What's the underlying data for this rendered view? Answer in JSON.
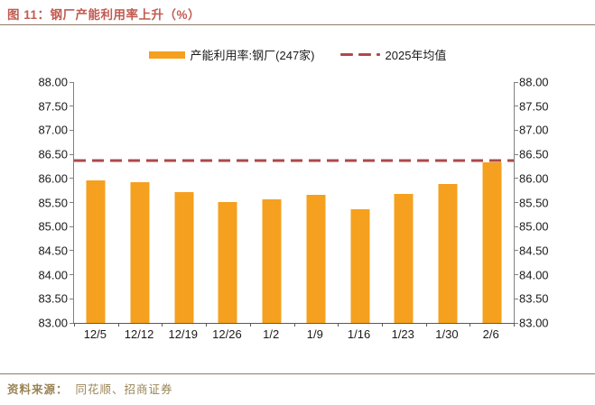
{
  "figure": {
    "title": "图 11：钢厂产能利用率上升（%）",
    "source_label": "资料来源：",
    "source_text": "同花顺、招商证券"
  },
  "legend": [
    {
      "label": "产能利用率:钢厂(247家)",
      "marker": "bar-swatch",
      "color": "#F5A01E"
    },
    {
      "label": "2025年均值",
      "marker": "dashed-line-swatch",
      "color": "#AC4A49"
    }
  ],
  "colors": {
    "bar": "#F5A01E",
    "mean_line": "#AC4A49",
    "title_text": "#C25B51",
    "source_text": "#998455",
    "rule": "#8E7D6B",
    "axis": "#808080",
    "axis_dark": "#595959",
    "text": "#1a1a1a"
  },
  "chart_data": {
    "type": "bar",
    "title": "钢厂产能利用率上升（%）",
    "categories": [
      "12/5",
      "12/12",
      "12/19",
      "12/26",
      "1/2",
      "1/9",
      "1/16",
      "1/23",
      "1/30",
      "2/6"
    ],
    "series": [
      {
        "name": "产能利用率:钢厂(247家)",
        "type": "bar",
        "values": [
          85.96,
          85.93,
          85.72,
          85.51,
          85.56,
          85.66,
          85.36,
          85.67,
          85.89,
          86.33
        ]
      },
      {
        "name": "2025年均值",
        "type": "dashed-horizontal-line",
        "value": 86.38
      }
    ],
    "ylim": [
      83.0,
      88.0
    ],
    "ytick_step": 0.5,
    "ytick_labels": [
      "88.00",
      "87.50",
      "87.00",
      "86.50",
      "86.00",
      "85.50",
      "85.00",
      "84.50",
      "84.00",
      "83.50",
      "83.00"
    ],
    "y_axis_sides": [
      "left",
      "right"
    ],
    "grid": false,
    "legend_position": "top-center",
    "xlabel": "",
    "ylabel": ""
  }
}
